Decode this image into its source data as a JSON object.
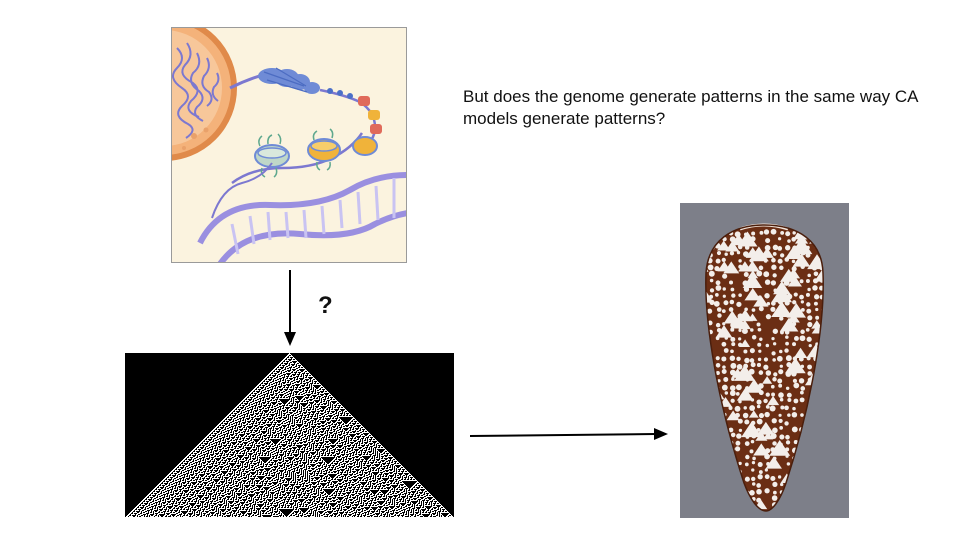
{
  "slide": {
    "question": "But does the genome generate patterns in the same way CA models generate patterns?",
    "question_mark": "?"
  },
  "colors": {
    "dna_background": "#fbf3df",
    "nucleus": "#f0a064",
    "chromatin": "#8f8ad6",
    "ca_background": "#000000",
    "ca_cells": "#ffffff",
    "shell_background": "#7d7f89",
    "shell_brown": "#6b2e14"
  },
  "icons": {
    "dna_illustration": "dna-chromatin-illustration",
    "ca_pattern": "cellular-automaton-pattern",
    "shell": "cone-shell-photo"
  }
}
